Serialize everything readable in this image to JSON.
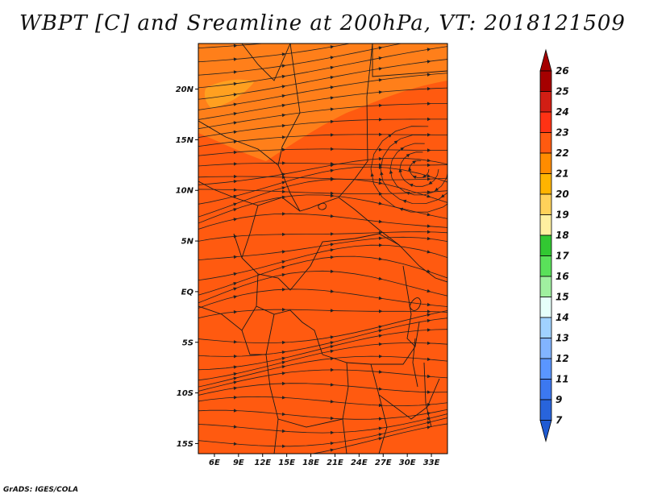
{
  "title": "WBPT [C] and Sreamline at 200hPa, VT: 2018121509",
  "credit": "GrADS: IGES/COLA",
  "map": {
    "lat_labels": [
      "20N",
      "15N",
      "10N",
      "5N",
      "EQ",
      "5S",
      "10S",
      "15S"
    ],
    "lat_values": [
      20,
      15,
      10,
      5,
      0,
      -5,
      -10,
      -15
    ],
    "lon_labels": [
      "6E",
      "9E",
      "12E",
      "15E",
      "18E",
      "21E",
      "24E",
      "27E",
      "30E",
      "33E"
    ],
    "lon_values": [
      6,
      9,
      12,
      15,
      18,
      21,
      24,
      27,
      30,
      33
    ],
    "lon_range": [
      4,
      35
    ],
    "lat_range": [
      -16,
      24.5
    ],
    "field_color": "#ff5a10",
    "field_color_north": "#ff7f1a",
    "field_color_peak": "#ffa020"
  },
  "colorbar": {
    "labels": [
      "26",
      "25",
      "24",
      "23",
      "22",
      "21",
      "20",
      "19",
      "18",
      "17",
      "16",
      "15",
      "14",
      "13",
      "12",
      "11",
      "9",
      "7"
    ],
    "colors": [
      "#a50000",
      "#d21e14",
      "#ff3214",
      "#ff5a10",
      "#ff8c00",
      "#ffb400",
      "#ffd25a",
      "#fff0a0",
      "#32c832",
      "#5ae15a",
      "#a0f0a0",
      "#e6fffa",
      "#a0d2ff",
      "#82b4ff",
      "#5a96ff",
      "#3c78f0",
      "#2864dc"
    ],
    "top_cap_color": "#a50000",
    "bottom_cap_color": "#1e5ad2"
  }
}
